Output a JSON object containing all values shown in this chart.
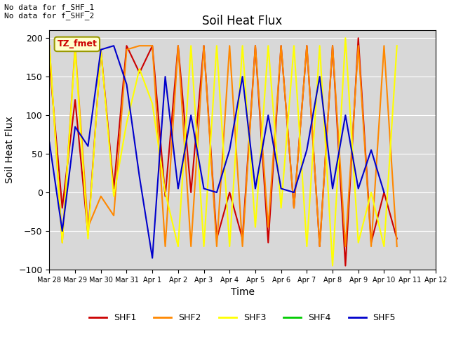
{
  "title": "Soil Heat Flux",
  "xlabel": "Time",
  "ylabel": "Soil Heat Flux",
  "ylim": [
    -100,
    210
  ],
  "yticks": [
    -100,
    -50,
    0,
    50,
    100,
    150,
    200
  ],
  "annotation_text": "No data for f_SHF_1\nNo data for f_SHF_2",
  "box_label": "TZ_fmet",
  "background_color": "#d8d8d8",
  "series": {
    "SHF1": {
      "color": "#cc0000",
      "x": [
        0,
        0.5,
        1,
        1.5,
        2,
        2.5,
        3,
        3.5,
        4,
        4.5,
        5,
        5.5,
        6,
        6.5,
        7,
        7.5,
        8,
        8.5,
        9,
        9.5,
        10,
        10.5,
        11,
        11.5,
        12,
        12.5,
        13,
        13.5,
        14
      ],
      "y": [
        170,
        -20,
        120,
        -55,
        185,
        5,
        190,
        155,
        190,
        -5,
        190,
        0,
        190,
        -60,
        0,
        -60,
        190,
        -65,
        190,
        -20,
        190,
        -70,
        190,
        -95,
        200,
        -65,
        0,
        -60,
        null
      ]
    },
    "SHF2": {
      "color": "#ff8800",
      "x": [
        0,
        0.5,
        1,
        1.5,
        2,
        2.5,
        3,
        3.5,
        4,
        4.5,
        5,
        5.5,
        6,
        6.5,
        7,
        7.5,
        8,
        8.5,
        9,
        9.5,
        10,
        10.5,
        11,
        11.5,
        12,
        12.5,
        13,
        13.5,
        14
      ],
      "y": [
        190,
        -65,
        190,
        -45,
        -5,
        -30,
        185,
        190,
        190,
        -70,
        190,
        -70,
        190,
        -70,
        190,
        -70,
        190,
        -45,
        190,
        -20,
        190,
        -70,
        190,
        -70,
        190,
        -70,
        190,
        -70,
        null
      ]
    },
    "SHF3": {
      "color": "#ffff00",
      "x": [
        0,
        0.5,
        1,
        1.5,
        2,
        2.5,
        3,
        3.5,
        4,
        4.5,
        5,
        5.5,
        6,
        6.5,
        7,
        7.5,
        8,
        8.5,
        9,
        9.5,
        10,
        10.5,
        11,
        11.5,
        12,
        12.5,
        13,
        13.5,
        14
      ],
      "y": [
        190,
        -65,
        185,
        -60,
        185,
        -5,
        90,
        160,
        115,
        0,
        -70,
        190,
        -70,
        190,
        -70,
        190,
        -45,
        190,
        -20,
        190,
        -70,
        190,
        -95,
        200,
        -65,
        0,
        -70,
        190,
        null
      ]
    },
    "SHF4": {
      "color": "#00cc00",
      "x": [],
      "y": []
    },
    "SHF5": {
      "color": "#0000cc",
      "x": [
        0,
        0.5,
        1,
        1.5,
        2,
        2.5,
        3,
        3.5,
        4,
        4.5,
        5,
        5.5,
        6,
        6.5,
        7,
        7.5,
        8,
        8.5,
        9,
        9.5,
        10,
        10.5,
        11,
        11.5,
        12,
        12.5,
        13
      ],
      "y": [
        65,
        -50,
        85,
        60,
        185,
        190,
        140,
        20,
        -85,
        150,
        5,
        100,
        5,
        0,
        55,
        150,
        5,
        100,
        5,
        0,
        55,
        150,
        5,
        100,
        5,
        55,
        0
      ]
    }
  },
  "xtick_labels": [
    "Mar 28",
    "Mar 29",
    "Mar 30",
    "Mar 31",
    "Apr 1",
    "Apr 2",
    "Apr 3",
    "Apr 4",
    "Apr 5",
    "Apr 6",
    "Apr 7",
    "Apr 8",
    "Apr 9",
    "Apr 10",
    "Apr 11",
    "Apr 12"
  ],
  "legend_order": [
    "SHF1",
    "SHF2",
    "SHF3",
    "SHF4",
    "SHF5"
  ]
}
